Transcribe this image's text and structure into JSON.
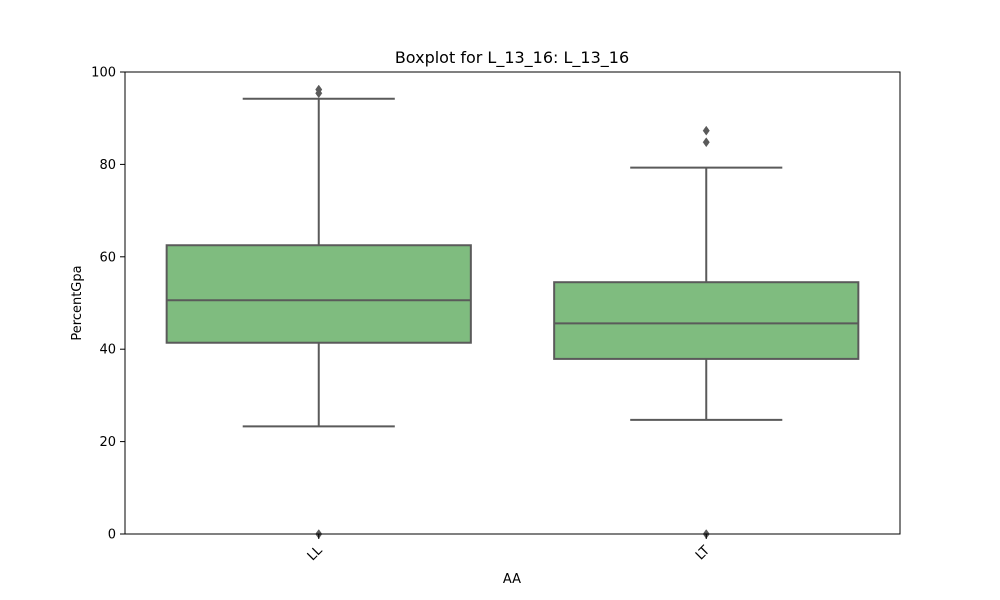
{
  "chart_data": {
    "type": "box",
    "title": "Boxplot for L_13_16: L_13_16",
    "xlabel": "AA",
    "ylabel": "PercentGpa",
    "ylim": [
      0,
      100
    ],
    "yticks": [
      0,
      20,
      40,
      60,
      80,
      100
    ],
    "categories": [
      "LL",
      "LT"
    ],
    "boxes": [
      {
        "category": "LL",
        "whisker_low": 23.3,
        "q1": 41.4,
        "median": 50.6,
        "q3": 62.5,
        "whisker_high": 94.2,
        "outliers": [
          0,
          95.4,
          96.2
        ]
      },
      {
        "category": "LT",
        "whisker_low": 24.7,
        "q1": 37.9,
        "median": 45.6,
        "q3": 54.5,
        "whisker_high": 79.3,
        "outliers": [
          0,
          84.8,
          87.3
        ]
      }
    ],
    "box_color": "#7fbc7f",
    "line_color": "#5a5a5a",
    "grid": false,
    "legend": "none"
  }
}
